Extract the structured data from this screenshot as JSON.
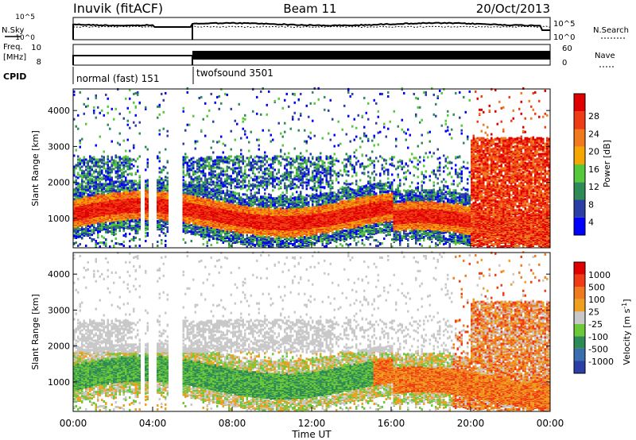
{
  "header": {
    "station": "Inuvik (fitACF)",
    "beam": "Beam 11",
    "date": "20/Oct/2013"
  },
  "side_labels": {
    "nsky": "N.Sky",
    "freq_line1": "Freq.",
    "freq_line2": "[MHz]",
    "cpid": "CPID",
    "nsearch": "N.Search",
    "nave": "Nave"
  },
  "cpid_segments": [
    {
      "label": "normal (fast) 151",
      "start_h": 0.0,
      "end_h": 6.0
    },
    {
      "label": "twofsound 3501",
      "start_h": 6.0,
      "end_h": 24.0
    }
  ],
  "chart_data": [
    {
      "type": "line",
      "panel": "noise",
      "left_ticks": [
        "10^5",
        "10^0"
      ],
      "right_ticks": [
        "10^5",
        "10^0"
      ],
      "series": [
        {
          "name": "N.Sky"
        },
        {
          "name": "N.Search"
        }
      ]
    },
    {
      "type": "line",
      "panel": "freq-nave",
      "left_ticks": [
        "10",
        "8"
      ],
      "right_ticks": [
        "60",
        "0"
      ],
      "series": [
        {
          "name": "Freq."
        },
        {
          "name": "Nave"
        }
      ]
    },
    {
      "type": "heatmap",
      "panel": "power",
      "ylabel": "Slant Range [km]",
      "ylim": [
        180,
        4600
      ],
      "y_ticks": [
        1000,
        2000,
        3000,
        4000
      ],
      "xlim_hours": [
        0,
        24
      ],
      "colorbar": {
        "label": "Power [dB]",
        "tick_labels": [
          "28",
          "24",
          "20",
          "16",
          "12",
          "8",
          "4"
        ],
        "colors": [
          "#0000ff",
          "#2a3ea6",
          "#2e8b57",
          "#55c93a",
          "#f5a600",
          "#f07a1e",
          "#f03c14",
          "#e00000"
        ]
      }
    },
    {
      "type": "heatmap",
      "panel": "velocity",
      "ylabel": "Slant Range [km]",
      "ylim": [
        180,
        4600
      ],
      "y_ticks": [
        1000,
        2000,
        3000,
        4000
      ],
      "xlim_hours": [
        0,
        24
      ],
      "xlabel": "Time UT",
      "x_tick_labels": [
        "00:00",
        "04:00",
        "08:00",
        "12:00",
        "16:00",
        "20:00",
        "00:00"
      ],
      "colorbar": {
        "label": "Velocity [m s^-1]",
        "tick_labels": [
          "1000",
          "500",
          "100",
          "25",
          "-25",
          "-100",
          "-500",
          "-1000"
        ],
        "colors": [
          "#2a3ea6",
          "#3a6eb0",
          "#2e8b57",
          "#6cc93a",
          "#c8c8c8",
          "#f0a020",
          "#f07a1e",
          "#f03c14",
          "#e00000"
        ]
      }
    }
  ]
}
